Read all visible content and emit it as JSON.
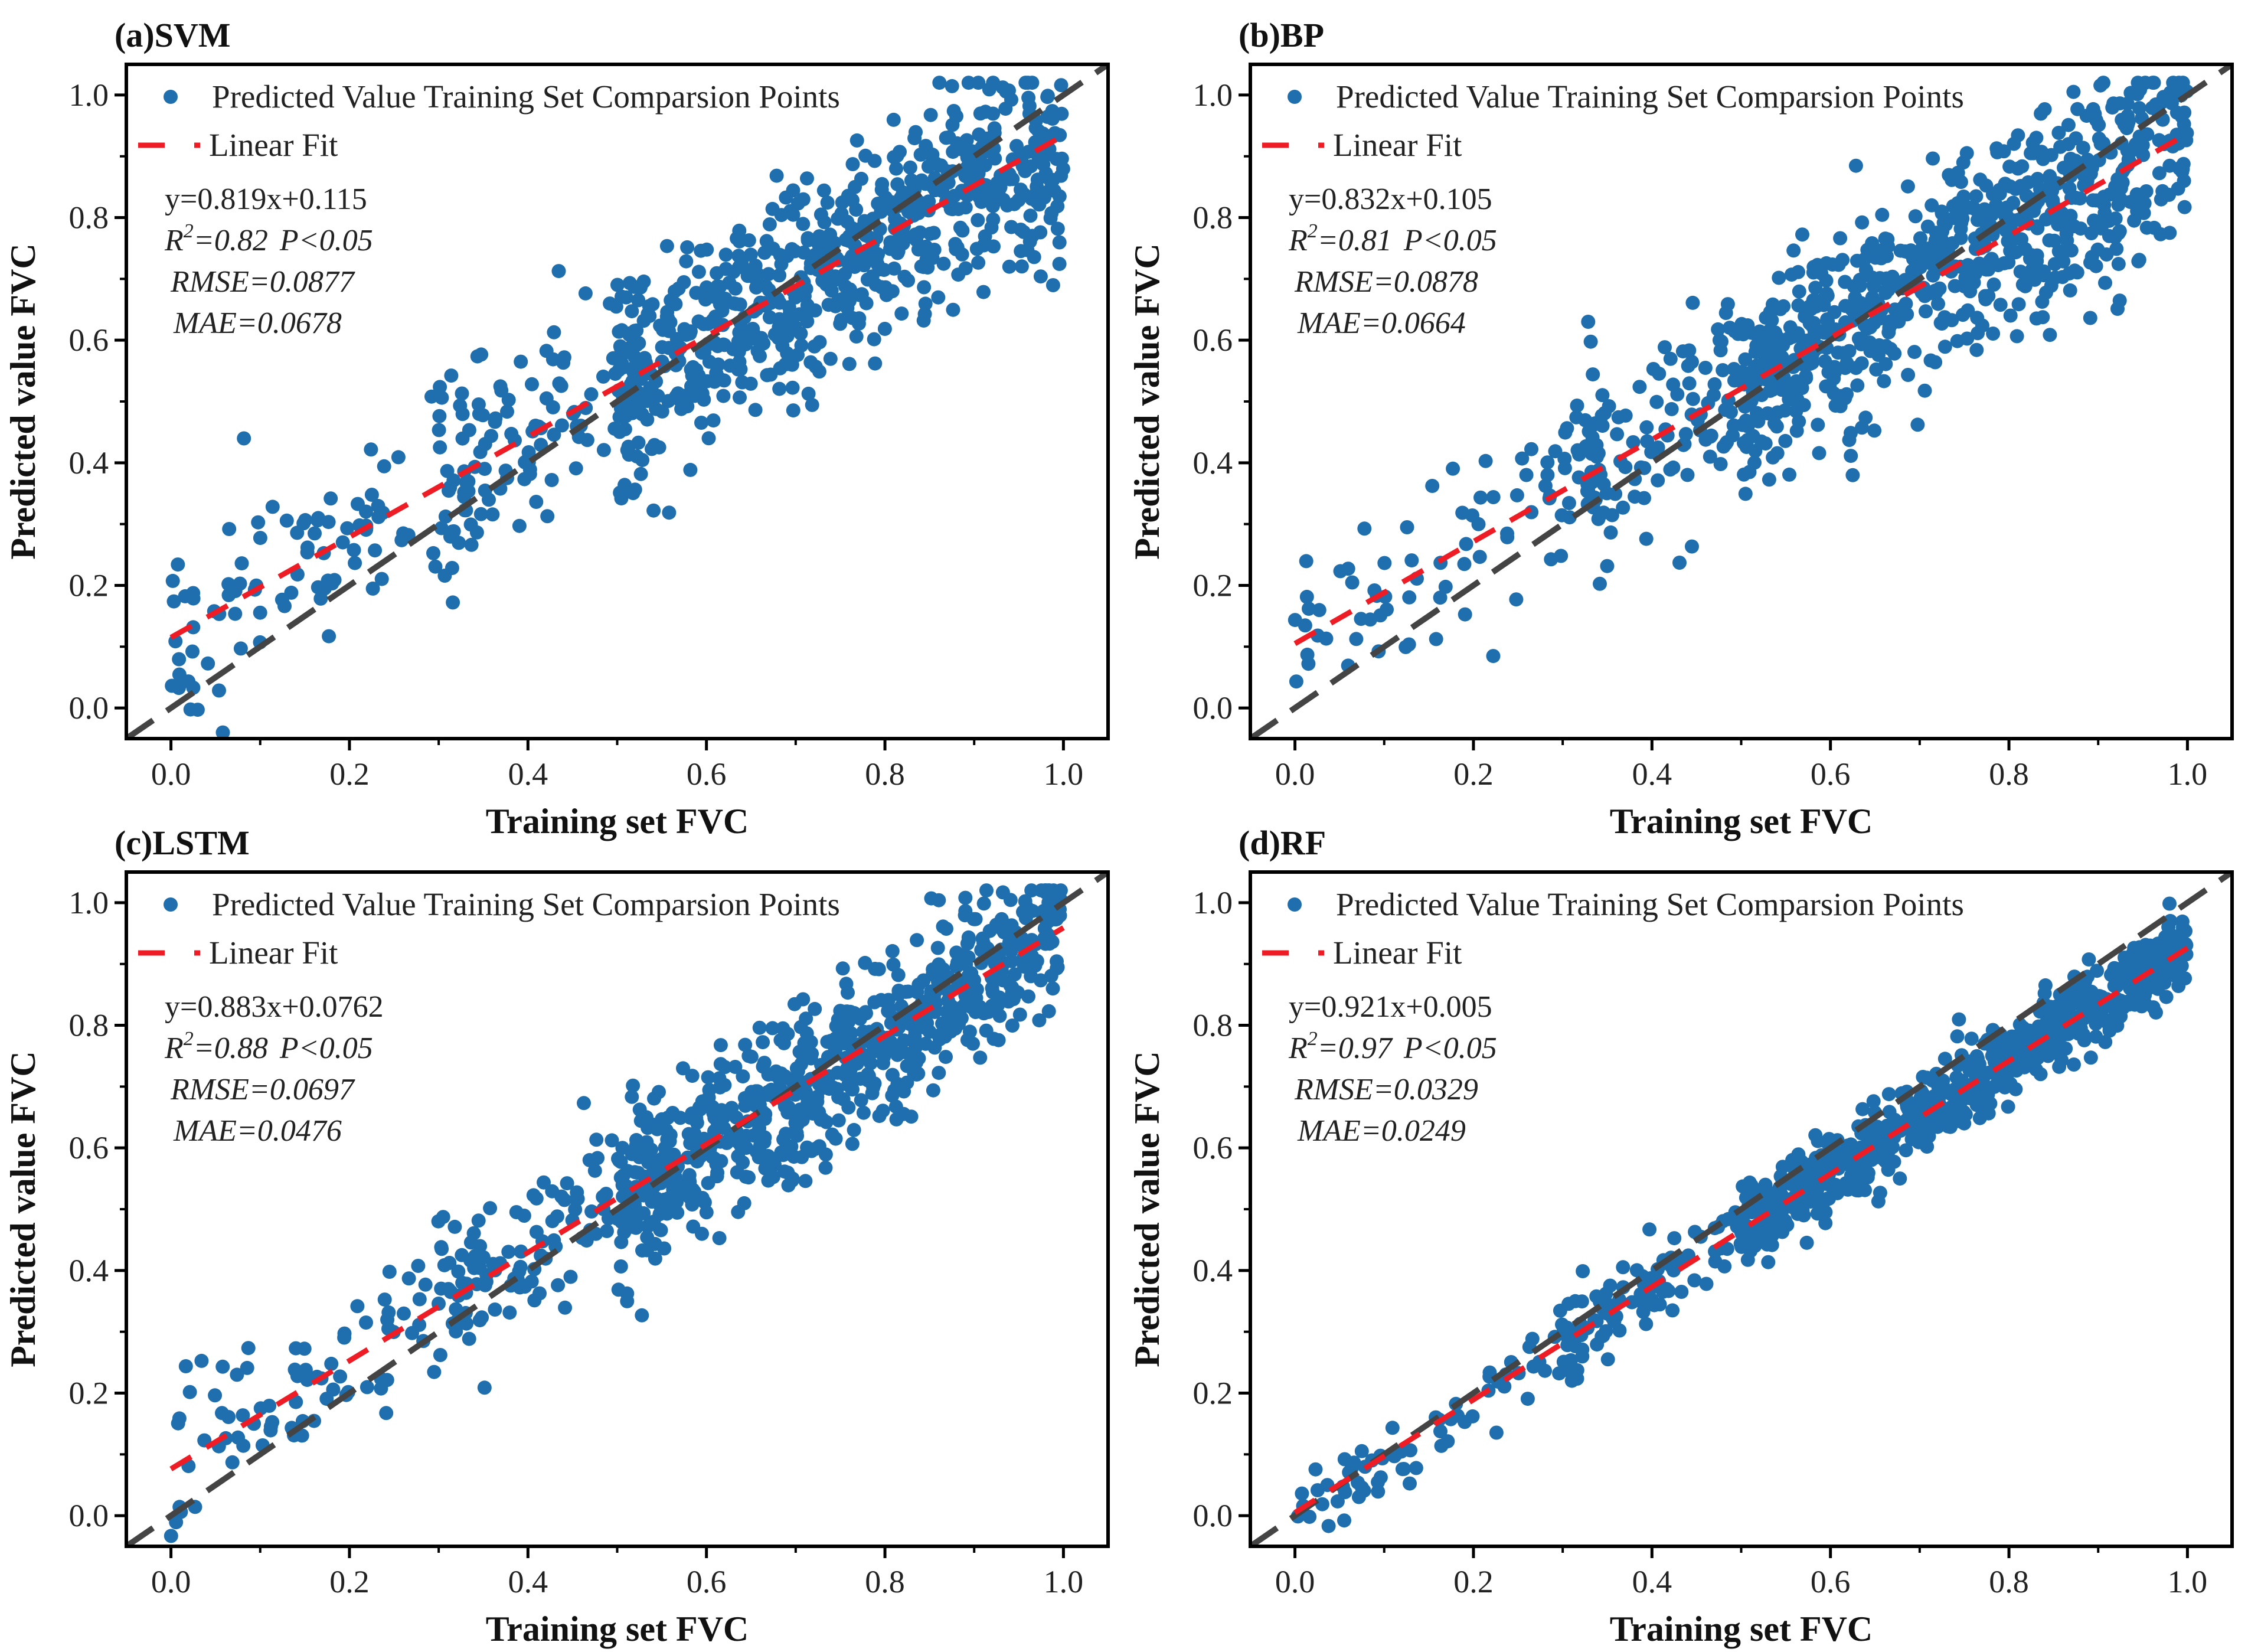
{
  "chart_data": [
    {
      "type": "scatter",
      "title": "(a)SVM",
      "xlabel": "Training set FVC",
      "ylabel": "Predicted value FVC",
      "xlim": [
        -0.05,
        1.05
      ],
      "ylim": [
        -0.05,
        1.05
      ],
      "xticks": [
        "0.0",
        "0.2",
        "0.4",
        "0.6",
        "0.8",
        "1.0"
      ],
      "yticks": [
        "0.0",
        "0.2",
        "0.4",
        "0.6",
        "0.8",
        "1.0"
      ],
      "legend": {
        "points": "Predicted Value Training Set Comparsion Points",
        "fit": "Linear Fit",
        "placement": "top-left"
      },
      "fit": {
        "slope": 0.819,
        "intercept": 0.115,
        "equation": "y=0.819x+0.115",
        "r2": "0.82",
        "p": "P<0.05",
        "rmse": "RMSE=0.0877",
        "mae": "MAE=0.0678"
      },
      "points": {
        "n": 900,
        "noise": 0.0877,
        "seed": 11
      }
    },
    {
      "type": "scatter",
      "title": "(b)BP",
      "xlabel": "Training set FVC",
      "ylabel": "Predicted value FVC",
      "xlim": [
        -0.05,
        1.05
      ],
      "ylim": [
        -0.05,
        1.05
      ],
      "xticks": [
        "0.0",
        "0.2",
        "0.4",
        "0.6",
        "0.8",
        "1.0"
      ],
      "yticks": [
        "0.0",
        "0.2",
        "0.4",
        "0.6",
        "0.8",
        "1.0"
      ],
      "legend": {
        "points": "Predicted Value Training Set Comparsion Points",
        "fit": "Linear Fit",
        "placement": "top-left"
      },
      "fit": {
        "slope": 0.832,
        "intercept": 0.105,
        "equation": "y=0.832x+0.105",
        "r2": "0.81",
        "p": "P<0.05",
        "rmse": "RMSE=0.0878",
        "mae": "MAE=0.0664"
      },
      "points": {
        "n": 900,
        "noise": 0.0878,
        "seed": 23
      }
    },
    {
      "type": "scatter",
      "title": "(c)LSTM",
      "xlabel": "Training set FVC",
      "ylabel": "Predicted value FVC",
      "xlim": [
        -0.05,
        1.05
      ],
      "ylim": [
        -0.05,
        1.05
      ],
      "xticks": [
        "0.0",
        "0.2",
        "0.4",
        "0.6",
        "0.8",
        "1.0"
      ],
      "yticks": [
        "0.0",
        "0.2",
        "0.4",
        "0.6",
        "0.8",
        "1.0"
      ],
      "legend": {
        "points": "Predicted Value Training Set Comparsion Points",
        "fit": "Linear Fit",
        "placement": "top-left"
      },
      "fit": {
        "slope": 0.883,
        "intercept": 0.0762,
        "equation": "y=0.883x+0.0762",
        "r2": "0.88",
        "p": "P<0.05",
        "rmse": "RMSE=0.0697",
        "mae": "MAE=0.0476"
      },
      "points": {
        "n": 900,
        "noise": 0.0697,
        "seed": 37
      }
    },
    {
      "type": "scatter",
      "title": "(d)RF",
      "xlabel": "Training set FVC",
      "ylabel": "Predicted value FVC",
      "xlim": [
        -0.05,
        1.05
      ],
      "ylim": [
        -0.05,
        1.05
      ],
      "xticks": [
        "0.0",
        "0.2",
        "0.4",
        "0.6",
        "0.8",
        "1.0"
      ],
      "yticks": [
        "0.0",
        "0.2",
        "0.4",
        "0.6",
        "0.8",
        "1.0"
      ],
      "legend": {
        "points": "Predicted Value Training Set Comparsion Points",
        "fit": "Linear Fit",
        "placement": "top-left"
      },
      "fit": {
        "slope": 0.921,
        "intercept": 0.005,
        "equation": "y=0.921x+0.005",
        "r2": "0.97",
        "p": "P<0.05",
        "rmse": "RMSE=0.0329",
        "mae": "MAE=0.0249"
      },
      "points": {
        "n": 900,
        "noise": 0.0329,
        "seed": 51
      }
    }
  ],
  "colors": {
    "points": "#1f6fae",
    "fit": "#ee1c25",
    "identity": "#444444"
  }
}
